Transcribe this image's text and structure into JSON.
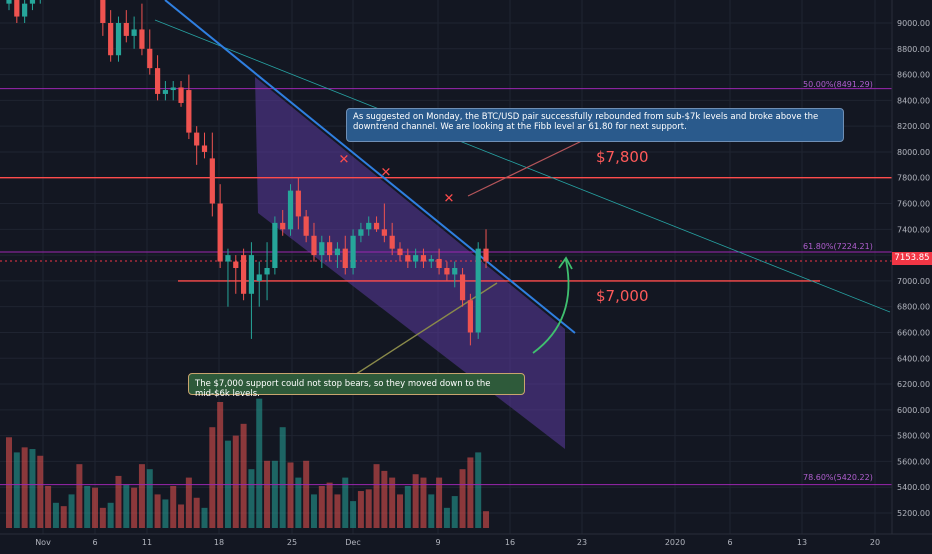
{
  "colors": {
    "background": "#131722",
    "up": "#26a69a",
    "down": "#ef5350",
    "channel_fill": "#5b3a9e",
    "trendline": "#2f7fe0",
    "fib": "#9c27b0",
    "support": "#ff4c4c",
    "callout_blue": "#2a5a8c",
    "callout_green": "#2e5a3a",
    "arrow": "#3fbf6f",
    "marker": "#ff4c4c"
  },
  "annotations": {
    "callout_top": "As suggested on Monday, the BTC/USD pair successfully rebounded from sub-$7k levels and broke above the downtrend channel. We are looking at the Fibb level ar 61.80 for next support.",
    "callout_bottom": "The $7,000 support could not stop bears, so they moved down to the mid-$6k levels.",
    "level_7800": "$7,800",
    "level_7000": "$7,000",
    "fib_50": "50.00%(8491.29)",
    "fib_618": "61.80%(7224.21)",
    "fib_786": "78.60%(5420.22)",
    "current_price": "7153.85"
  },
  "chart_data": {
    "type": "candlestick",
    "title": "",
    "xlabel": "",
    "ylabel": "",
    "ylim": [
      5100,
      9200
    ],
    "y_ticks": [
      5200,
      5400,
      5600,
      5800,
      6000,
      6200,
      6400,
      6600,
      6800,
      7000,
      7200,
      7400,
      7600,
      7800,
      8000,
      8200,
      8400,
      8600,
      8800,
      9000
    ],
    "y_tick_labels": [
      "5200.00",
      "5400.00",
      "5600.00",
      "5800.00",
      "6000.00",
      "6200.00",
      "6400.00",
      "6600.00",
      "6800.00",
      "7000.00",
      "7200.00",
      "7400.00",
      "7600.00",
      "7800.00",
      "8000.00",
      "8200.00",
      "8400.00",
      "8600.00",
      "8800.00",
      "9000.00"
    ],
    "x_tick_labels": [
      "Nov",
      "6",
      "11",
      "18",
      "25",
      "Dec",
      "9",
      "16",
      "23",
      "2020",
      "6",
      "13",
      "20"
    ],
    "grid": true,
    "candles": [
      {
        "o": 9150,
        "h": 9250,
        "l": 9100,
        "c": 9200
      },
      {
        "o": 9200,
        "h": 9250,
        "l": 9000,
        "c": 9050
      },
      {
        "o": 9050,
        "h": 9200,
        "l": 9000,
        "c": 9150
      },
      {
        "o": 9150,
        "h": 9250,
        "l": 9100,
        "c": 9200
      },
      {
        "o": 9200,
        "h": 9250,
        "l": 9150,
        "c": 9220
      },
      {
        "o": 9220,
        "h": 9250,
        "l": 9180,
        "c": 9230
      },
      {
        "o": 9230,
        "h": 9250,
        "l": 9200,
        "c": 9240
      },
      {
        "o": 9240,
        "h": 9250,
        "l": 9200,
        "c": 9230
      },
      {
        "o": 9230,
        "h": 9250,
        "l": 9200,
        "c": 9240
      },
      {
        "o": 9240,
        "h": 9250,
        "l": 9220,
        "c": 9245
      },
      {
        "o": 9245,
        "h": 9250,
        "l": 9200,
        "c": 9230
      },
      {
        "o": 9230,
        "h": 9250,
        "l": 9200,
        "c": 9240
      },
      {
        "o": 9240,
        "h": 9250,
        "l": 8900,
        "c": 9000
      },
      {
        "o": 9000,
        "h": 9100,
        "l": 8700,
        "c": 8750
      },
      {
        "o": 8750,
        "h": 9050,
        "l": 8700,
        "c": 9000
      },
      {
        "o": 9000,
        "h": 9100,
        "l": 8850,
        "c": 8900
      },
      {
        "o": 8900,
        "h": 9050,
        "l": 8800,
        "c": 8950
      },
      {
        "o": 8950,
        "h": 9150,
        "l": 8750,
        "c": 8800
      },
      {
        "o": 8800,
        "h": 8950,
        "l": 8600,
        "c": 8650
      },
      {
        "o": 8650,
        "h": 8750,
        "l": 8400,
        "c": 8450
      },
      {
        "o": 8450,
        "h": 8550,
        "l": 8400,
        "c": 8480
      },
      {
        "o": 8480,
        "h": 8550,
        "l": 8400,
        "c": 8500
      },
      {
        "o": 8500,
        "h": 8550,
        "l": 8350,
        "c": 8380
      },
      {
        "o": 8480,
        "h": 8600,
        "l": 8100,
        "c": 8150
      },
      {
        "o": 8150,
        "h": 8200,
        "l": 7900,
        "c": 8050
      },
      {
        "o": 8050,
        "h": 8150,
        "l": 7950,
        "c": 8000
      },
      {
        "o": 7950,
        "h": 8150,
        "l": 7500,
        "c": 7600
      },
      {
        "o": 7600,
        "h": 7750,
        "l": 7100,
        "c": 7150
      },
      {
        "o": 7150,
        "h": 7250,
        "l": 6800,
        "c": 7200
      },
      {
        "o": 7150,
        "h": 7200,
        "l": 6900,
        "c": 7100
      },
      {
        "o": 7200,
        "h": 7250,
        "l": 6850,
        "c": 6900
      },
      {
        "o": 6900,
        "h": 7300,
        "l": 6550,
        "c": 7200
      },
      {
        "o": 7000,
        "h": 7150,
        "l": 6800,
        "c": 7050
      },
      {
        "o": 7050,
        "h": 7300,
        "l": 6850,
        "c": 7100
      },
      {
        "o": 7100,
        "h": 7500,
        "l": 7050,
        "c": 7450
      },
      {
        "o": 7450,
        "h": 7550,
        "l": 7350,
        "c": 7400
      },
      {
        "o": 7400,
        "h": 7750,
        "l": 7350,
        "c": 7700
      },
      {
        "o": 7700,
        "h": 7800,
        "l": 7400,
        "c": 7500
      },
      {
        "o": 7500,
        "h": 7550,
        "l": 7300,
        "c": 7350
      },
      {
        "o": 7350,
        "h": 7450,
        "l": 7150,
        "c": 7200
      },
      {
        "o": 7200,
        "h": 7350,
        "l": 7100,
        "c": 7300
      },
      {
        "o": 7300,
        "h": 7350,
        "l": 7150,
        "c": 7200
      },
      {
        "o": 7200,
        "h": 7300,
        "l": 7100,
        "c": 7250
      },
      {
        "o": 7250,
        "h": 7350,
        "l": 7050,
        "c": 7100
      },
      {
        "o": 7100,
        "h": 7400,
        "l": 7050,
        "c": 7350
      },
      {
        "o": 7350,
        "h": 7450,
        "l": 7300,
        "c": 7400
      },
      {
        "o": 7400,
        "h": 7500,
        "l": 7350,
        "c": 7450
      },
      {
        "o": 7450,
        "h": 7500,
        "l": 7380,
        "c": 7400
      },
      {
        "o": 7400,
        "h": 7600,
        "l": 7300,
        "c": 7350
      },
      {
        "o": 7350,
        "h": 7450,
        "l": 7200,
        "c": 7250
      },
      {
        "o": 7250,
        "h": 7300,
        "l": 7150,
        "c": 7200
      },
      {
        "o": 7200,
        "h": 7250,
        "l": 7100,
        "c": 7150
      },
      {
        "o": 7150,
        "h": 7250,
        "l": 7100,
        "c": 7200
      },
      {
        "o": 7200,
        "h": 7250,
        "l": 7100,
        "c": 7150
      },
      {
        "o": 7150,
        "h": 7200,
        "l": 7100,
        "c": 7170
      },
      {
        "o": 7170,
        "h": 7250,
        "l": 7050,
        "c": 7100
      },
      {
        "o": 7100,
        "h": 7150,
        "l": 7000,
        "c": 7050
      },
      {
        "o": 7050,
        "h": 7150,
        "l": 6950,
        "c": 7100
      },
      {
        "o": 7050,
        "h": 7100,
        "l": 6800,
        "c": 6850
      },
      {
        "o": 6850,
        "h": 6900,
        "l": 6500,
        "c": 6600
      },
      {
        "o": 6600,
        "h": 7300,
        "l": 6550,
        "c": 7250
      },
      {
        "o": 7250,
        "h": 7400,
        "l": 7100,
        "c": 7150
      }
    ],
    "volumes": [
      {
        "v": 540,
        "dir": "down"
      },
      {
        "v": 450,
        "dir": "up"
      },
      {
        "v": 480,
        "dir": "down"
      },
      {
        "v": 470,
        "dir": "up"
      },
      {
        "v": 430,
        "dir": "down"
      },
      {
        "v": 250,
        "dir": "down"
      },
      {
        "v": 150,
        "dir": "up"
      },
      {
        "v": 130,
        "dir": "down"
      },
      {
        "v": 200,
        "dir": "up"
      },
      {
        "v": 380,
        "dir": "down"
      },
      {
        "v": 250,
        "dir": "up"
      },
      {
        "v": 240,
        "dir": "down"
      },
      {
        "v": 120,
        "dir": "down"
      },
      {
        "v": 150,
        "dir": "up"
      },
      {
        "v": 310,
        "dir": "down"
      },
      {
        "v": 260,
        "dir": "up"
      },
      {
        "v": 240,
        "dir": "down"
      },
      {
        "v": 380,
        "dir": "down"
      },
      {
        "v": 350,
        "dir": "up"
      },
      {
        "v": 200,
        "dir": "down"
      },
      {
        "v": 170,
        "dir": "up"
      },
      {
        "v": 250,
        "dir": "down"
      },
      {
        "v": 140,
        "dir": "down"
      },
      {
        "v": 300,
        "dir": "down"
      },
      {
        "v": 180,
        "dir": "down"
      },
      {
        "v": 120,
        "dir": "up"
      },
      {
        "v": 600,
        "dir": "down"
      },
      {
        "v": 750,
        "dir": "down"
      },
      {
        "v": 520,
        "dir": "up"
      },
      {
        "v": 550,
        "dir": "down"
      },
      {
        "v": 620,
        "dir": "down"
      },
      {
        "v": 350,
        "dir": "up"
      },
      {
        "v": 770,
        "dir": "up"
      },
      {
        "v": 400,
        "dir": "down"
      },
      {
        "v": 400,
        "dir": "up"
      },
      {
        "v": 600,
        "dir": "up"
      },
      {
        "v": 390,
        "dir": "down"
      },
      {
        "v": 300,
        "dir": "up"
      },
      {
        "v": 400,
        "dir": "down"
      },
      {
        "v": 200,
        "dir": "up"
      },
      {
        "v": 250,
        "dir": "down"
      },
      {
        "v": 270,
        "dir": "down"
      },
      {
        "v": 200,
        "dir": "down"
      },
      {
        "v": 300,
        "dir": "up"
      },
      {
        "v": 160,
        "dir": "up"
      },
      {
        "v": 220,
        "dir": "down"
      },
      {
        "v": 230,
        "dir": "down"
      },
      {
        "v": 380,
        "dir": "down"
      },
      {
        "v": 340,
        "dir": "down"
      },
      {
        "v": 300,
        "dir": "down"
      },
      {
        "v": 200,
        "dir": "down"
      },
      {
        "v": 250,
        "dir": "up"
      },
      {
        "v": 320,
        "dir": "down"
      },
      {
        "v": 300,
        "dir": "down"
      },
      {
        "v": 200,
        "dir": "up"
      },
      {
        "v": 300,
        "dir": "down"
      },
      {
        "v": 120,
        "dir": "up"
      },
      {
        "v": 190,
        "dir": "up"
      },
      {
        "v": 350,
        "dir": "down"
      },
      {
        "v": 420,
        "dir": "down"
      },
      {
        "v": 450,
        "dir": "up"
      },
      {
        "v": 100,
        "dir": "down"
      }
    ],
    "levels": [
      {
        "name": "fib-50",
        "value": 8491.29,
        "kind": "fib"
      },
      {
        "name": "resistance-7800",
        "value": 7800,
        "kind": "support"
      },
      {
        "name": "fib-61.8",
        "value": 7224.21,
        "kind": "fib"
      },
      {
        "name": "support-7000",
        "value": 7000,
        "kind": "support"
      },
      {
        "name": "fib-78.6",
        "value": 5420.22,
        "kind": "fib"
      }
    ],
    "markers": [
      7800,
      7700,
      7500
    ],
    "current_price": 7153.85
  }
}
